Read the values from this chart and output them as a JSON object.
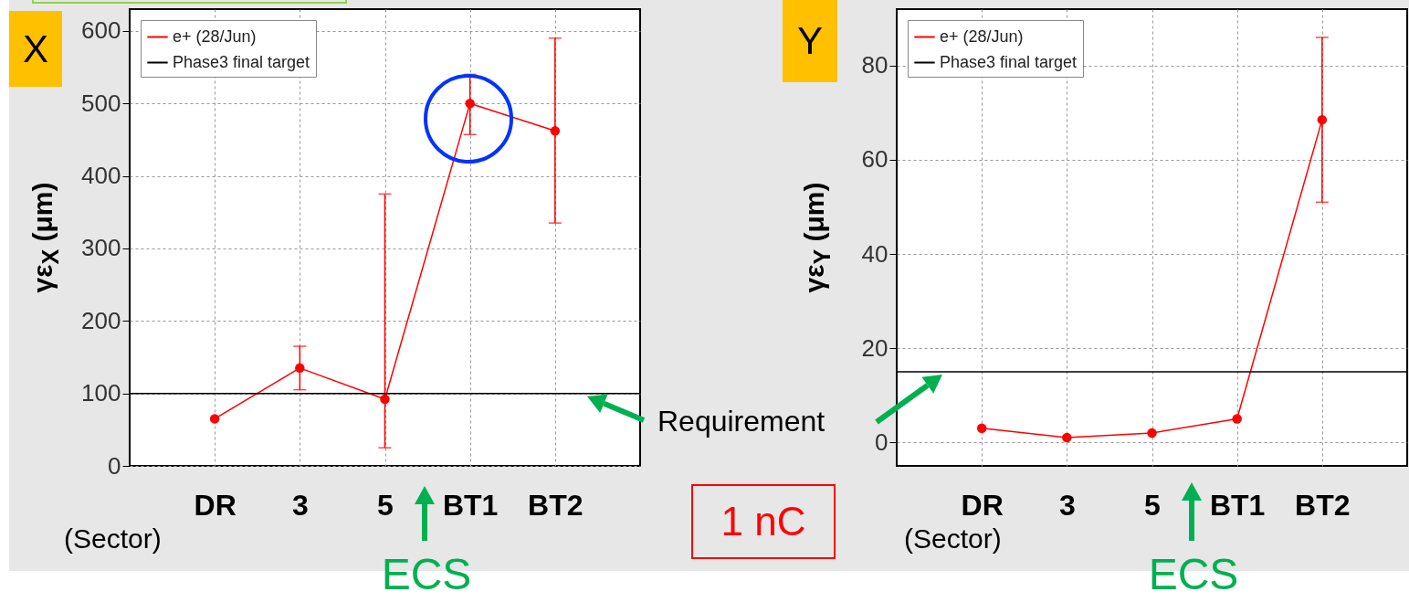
{
  "chart_data": [
    {
      "type": "line",
      "categories": [
        "DR",
        "3",
        "5",
        "BT1",
        "BT2"
      ],
      "series": [
        {
          "name": "e+ (28/Jun)",
          "color": "#ff0000",
          "values": [
            65,
            135,
            92,
            500,
            462
          ],
          "errors": [
            null,
            [
              105,
              165
            ],
            [
              25,
              375
            ],
            [
              457,
              540
            ],
            [
              335,
              590
            ]
          ]
        }
      ],
      "ylabel": "γε$_{X}$ (μm)",
      "ylim": [
        0,
        630
      ],
      "yticks": [
        0,
        100,
        200,
        300,
        400,
        500,
        600
      ],
      "grid": true,
      "legend": "top left",
      "marker": "circle",
      "line_style": "solid",
      "ref_lines": [
        {
          "axis": "y",
          "value": 100,
          "label": "Phase3 final target",
          "color": "#000000"
        }
      ],
      "annotations": [
        "X",
        "(Sector)",
        "ECS",
        "Requirement",
        "1 nC"
      ]
    },
    {
      "type": "line",
      "categories": [
        "DR",
        "3",
        "5",
        "BT1",
        "BT2"
      ],
      "series": [
        {
          "name": "e+ (28/Jun)",
          "color": "#ff0000",
          "values": [
            3,
            1,
            2,
            5,
            68.5
          ],
          "errors": [
            null,
            null,
            null,
            null,
            [
              51,
              86
            ]
          ]
        }
      ],
      "ylabel": "γε$_{Y}$ (μm)",
      "ylim": [
        -5,
        92
      ],
      "yticks": [
        0,
        20,
        40,
        60,
        80
      ],
      "grid": true,
      "legend": "top left",
      "marker": "circle",
      "line_style": "solid",
      "ref_lines": [
        {
          "axis": "y",
          "value": 15,
          "label": "Phase3 final target",
          "color": "#000000"
        }
      ],
      "annotations": [
        "Y",
        "(Sector)",
        "ECS"
      ]
    }
  ]
}
